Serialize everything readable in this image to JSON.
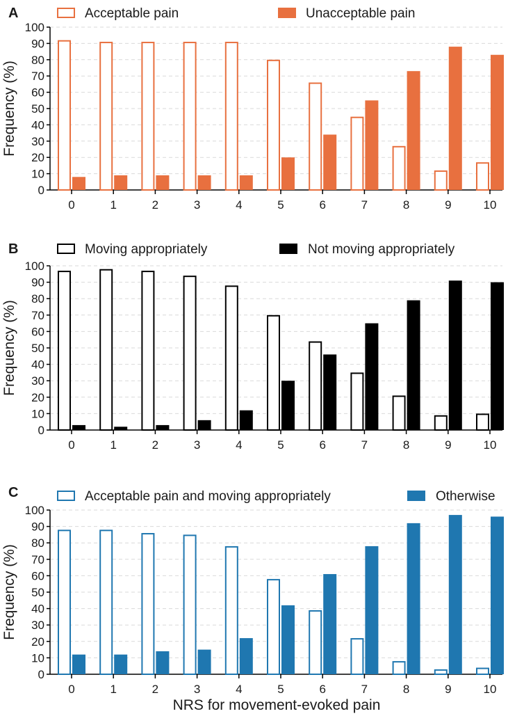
{
  "figure": {
    "xlabel": "NRS for movement-evoked pain"
  },
  "chart_data": [
    {
      "type": "bar",
      "panel_label": "A",
      "title": "",
      "ylabel": "Frequency (%)",
      "xlabel": "",
      "ylim": [
        0,
        100
      ],
      "yticks": [
        0,
        10,
        20,
        30,
        40,
        50,
        60,
        70,
        80,
        90,
        100
      ],
      "grid": true,
      "legend_placement": "top",
      "categories": [
        "0",
        "1",
        "2",
        "3",
        "4",
        "5",
        "6",
        "7",
        "8",
        "9",
        "10"
      ],
      "series": [
        {
          "name": "Acceptable pain",
          "style": "outline",
          "color": "#E8703F",
          "values": [
            92,
            91,
            91,
            91,
            91,
            80,
            66,
            45,
            27,
            12,
            17
          ]
        },
        {
          "name": "Unacceptable pain",
          "style": "filled",
          "color": "#E8703F",
          "values": [
            8,
            9,
            9,
            9,
            9,
            20,
            34,
            55,
            73,
            88,
            83
          ]
        }
      ]
    },
    {
      "type": "bar",
      "panel_label": "B",
      "title": "",
      "ylabel": "Frequency (%)",
      "xlabel": "",
      "ylim": [
        0,
        100
      ],
      "yticks": [
        0,
        10,
        20,
        30,
        40,
        50,
        60,
        70,
        80,
        90,
        100
      ],
      "grid": true,
      "legend_placement": "top",
      "categories": [
        "0",
        "1",
        "2",
        "3",
        "4",
        "5",
        "6",
        "7",
        "8",
        "9",
        "10"
      ],
      "series": [
        {
          "name": "Moving appropriately",
          "style": "outline",
          "color": "#000000",
          "values": [
            97,
            98,
            97,
            94,
            88,
            70,
            54,
            35,
            21,
            9,
            10
          ]
        },
        {
          "name": "Not moving appropriately",
          "style": "filled",
          "color": "#000000",
          "values": [
            3,
            2,
            3,
            6,
            12,
            30,
            46,
            65,
            79,
            91,
            90
          ]
        }
      ]
    },
    {
      "type": "bar",
      "panel_label": "C",
      "title": "",
      "ylabel": "Frequency (%)",
      "xlabel": "NRS for movement-evoked pain",
      "ylim": [
        0,
        100
      ],
      "yticks": [
        0,
        10,
        20,
        30,
        40,
        50,
        60,
        70,
        80,
        90,
        100
      ],
      "grid": true,
      "legend_placement": "top",
      "categories": [
        "0",
        "1",
        "2",
        "3",
        "4",
        "5",
        "6",
        "7",
        "8",
        "9",
        "10"
      ],
      "series": [
        {
          "name": "Acceptable pain and moving appropriately",
          "style": "outline",
          "color": "#1F77B0",
          "values": [
            88,
            88,
            86,
            85,
            78,
            58,
            39,
            22,
            8,
            3,
            4
          ]
        },
        {
          "name": "Otherwise",
          "style": "filled",
          "color": "#1F77B0",
          "values": [
            12,
            12,
            14,
            15,
            22,
            42,
            61,
            78,
            92,
            97,
            96
          ]
        }
      ]
    }
  ]
}
